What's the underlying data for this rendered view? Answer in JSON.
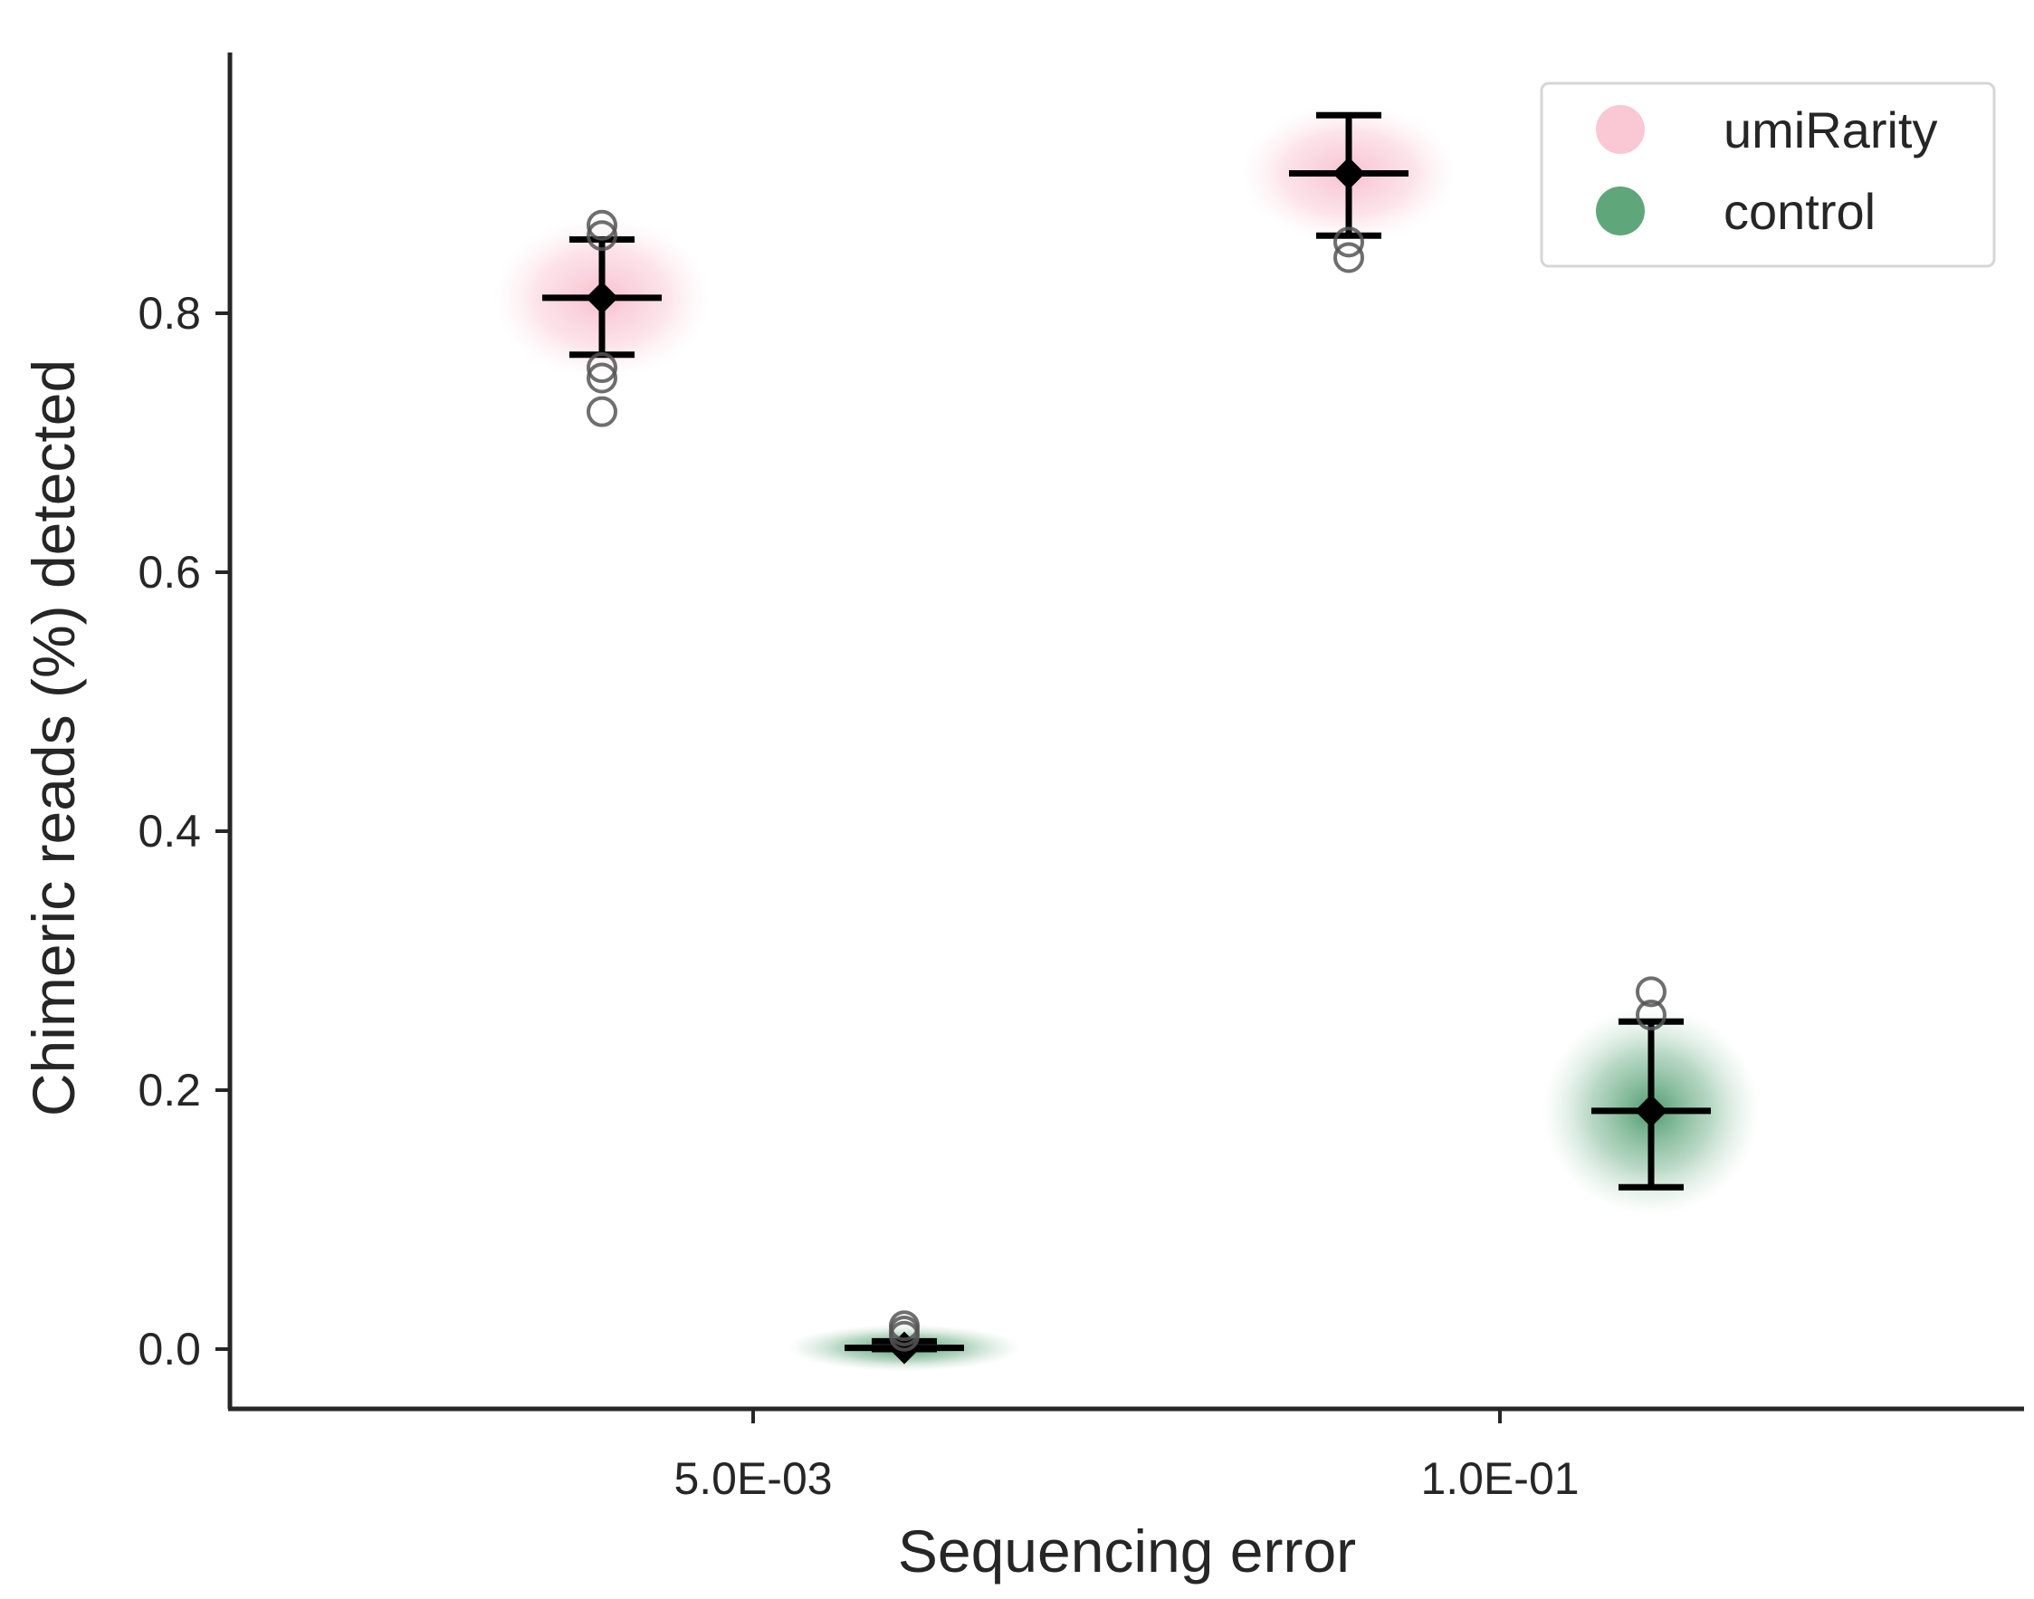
{
  "chart_data": {
    "type": "scatter",
    "xlabel": "Sequencing error",
    "ylabel": "Chimeric reads (%) detected",
    "categories": [
      "5.0E-03",
      "1.0E-01"
    ],
    "ylim": [
      -0.095,
      1.0
    ],
    "yticks": [
      0.0,
      0.2,
      0.4,
      0.6,
      0.8
    ],
    "ytick_labels": [
      "0.0",
      "0.2",
      "0.4",
      "0.6",
      "0.8"
    ],
    "grid": false,
    "legend_position": "top-right",
    "series": [
      {
        "name": "umiRarity",
        "color": "#f9c8d4",
        "summary": [
          {
            "category": "5.0E-03",
            "mean": 0.812,
            "lower": 0.768,
            "upper": 0.857,
            "spread": 0.035
          },
          {
            "category": "1.0E-01",
            "mean": 0.908,
            "lower": 0.86,
            "upper": 0.953,
            "spread": 0.03
          }
        ],
        "outliers": [
          {
            "category": "5.0E-03",
            "values": [
              0.868,
              0.86,
              0.758,
              0.75,
              0.724
            ]
          },
          {
            "category": "1.0E-01",
            "values": [
              0.855,
              0.843
            ]
          }
        ]
      },
      {
        "name": "control",
        "color": "#5fa67b",
        "summary": [
          {
            "category": "5.0E-03",
            "mean": 0.001,
            "lower": 0.0,
            "upper": 0.006,
            "spread": 0.004
          },
          {
            "category": "1.0E-01",
            "mean": 0.184,
            "lower": 0.125,
            "upper": 0.253,
            "spread": 0.045
          }
        ],
        "outliers": [
          {
            "category": "5.0E-03",
            "values": [
              0.018,
              0.014,
              0.01
            ]
          },
          {
            "category": "1.0E-01",
            "values": [
              0.276,
              0.258
            ]
          }
        ]
      }
    ]
  }
}
